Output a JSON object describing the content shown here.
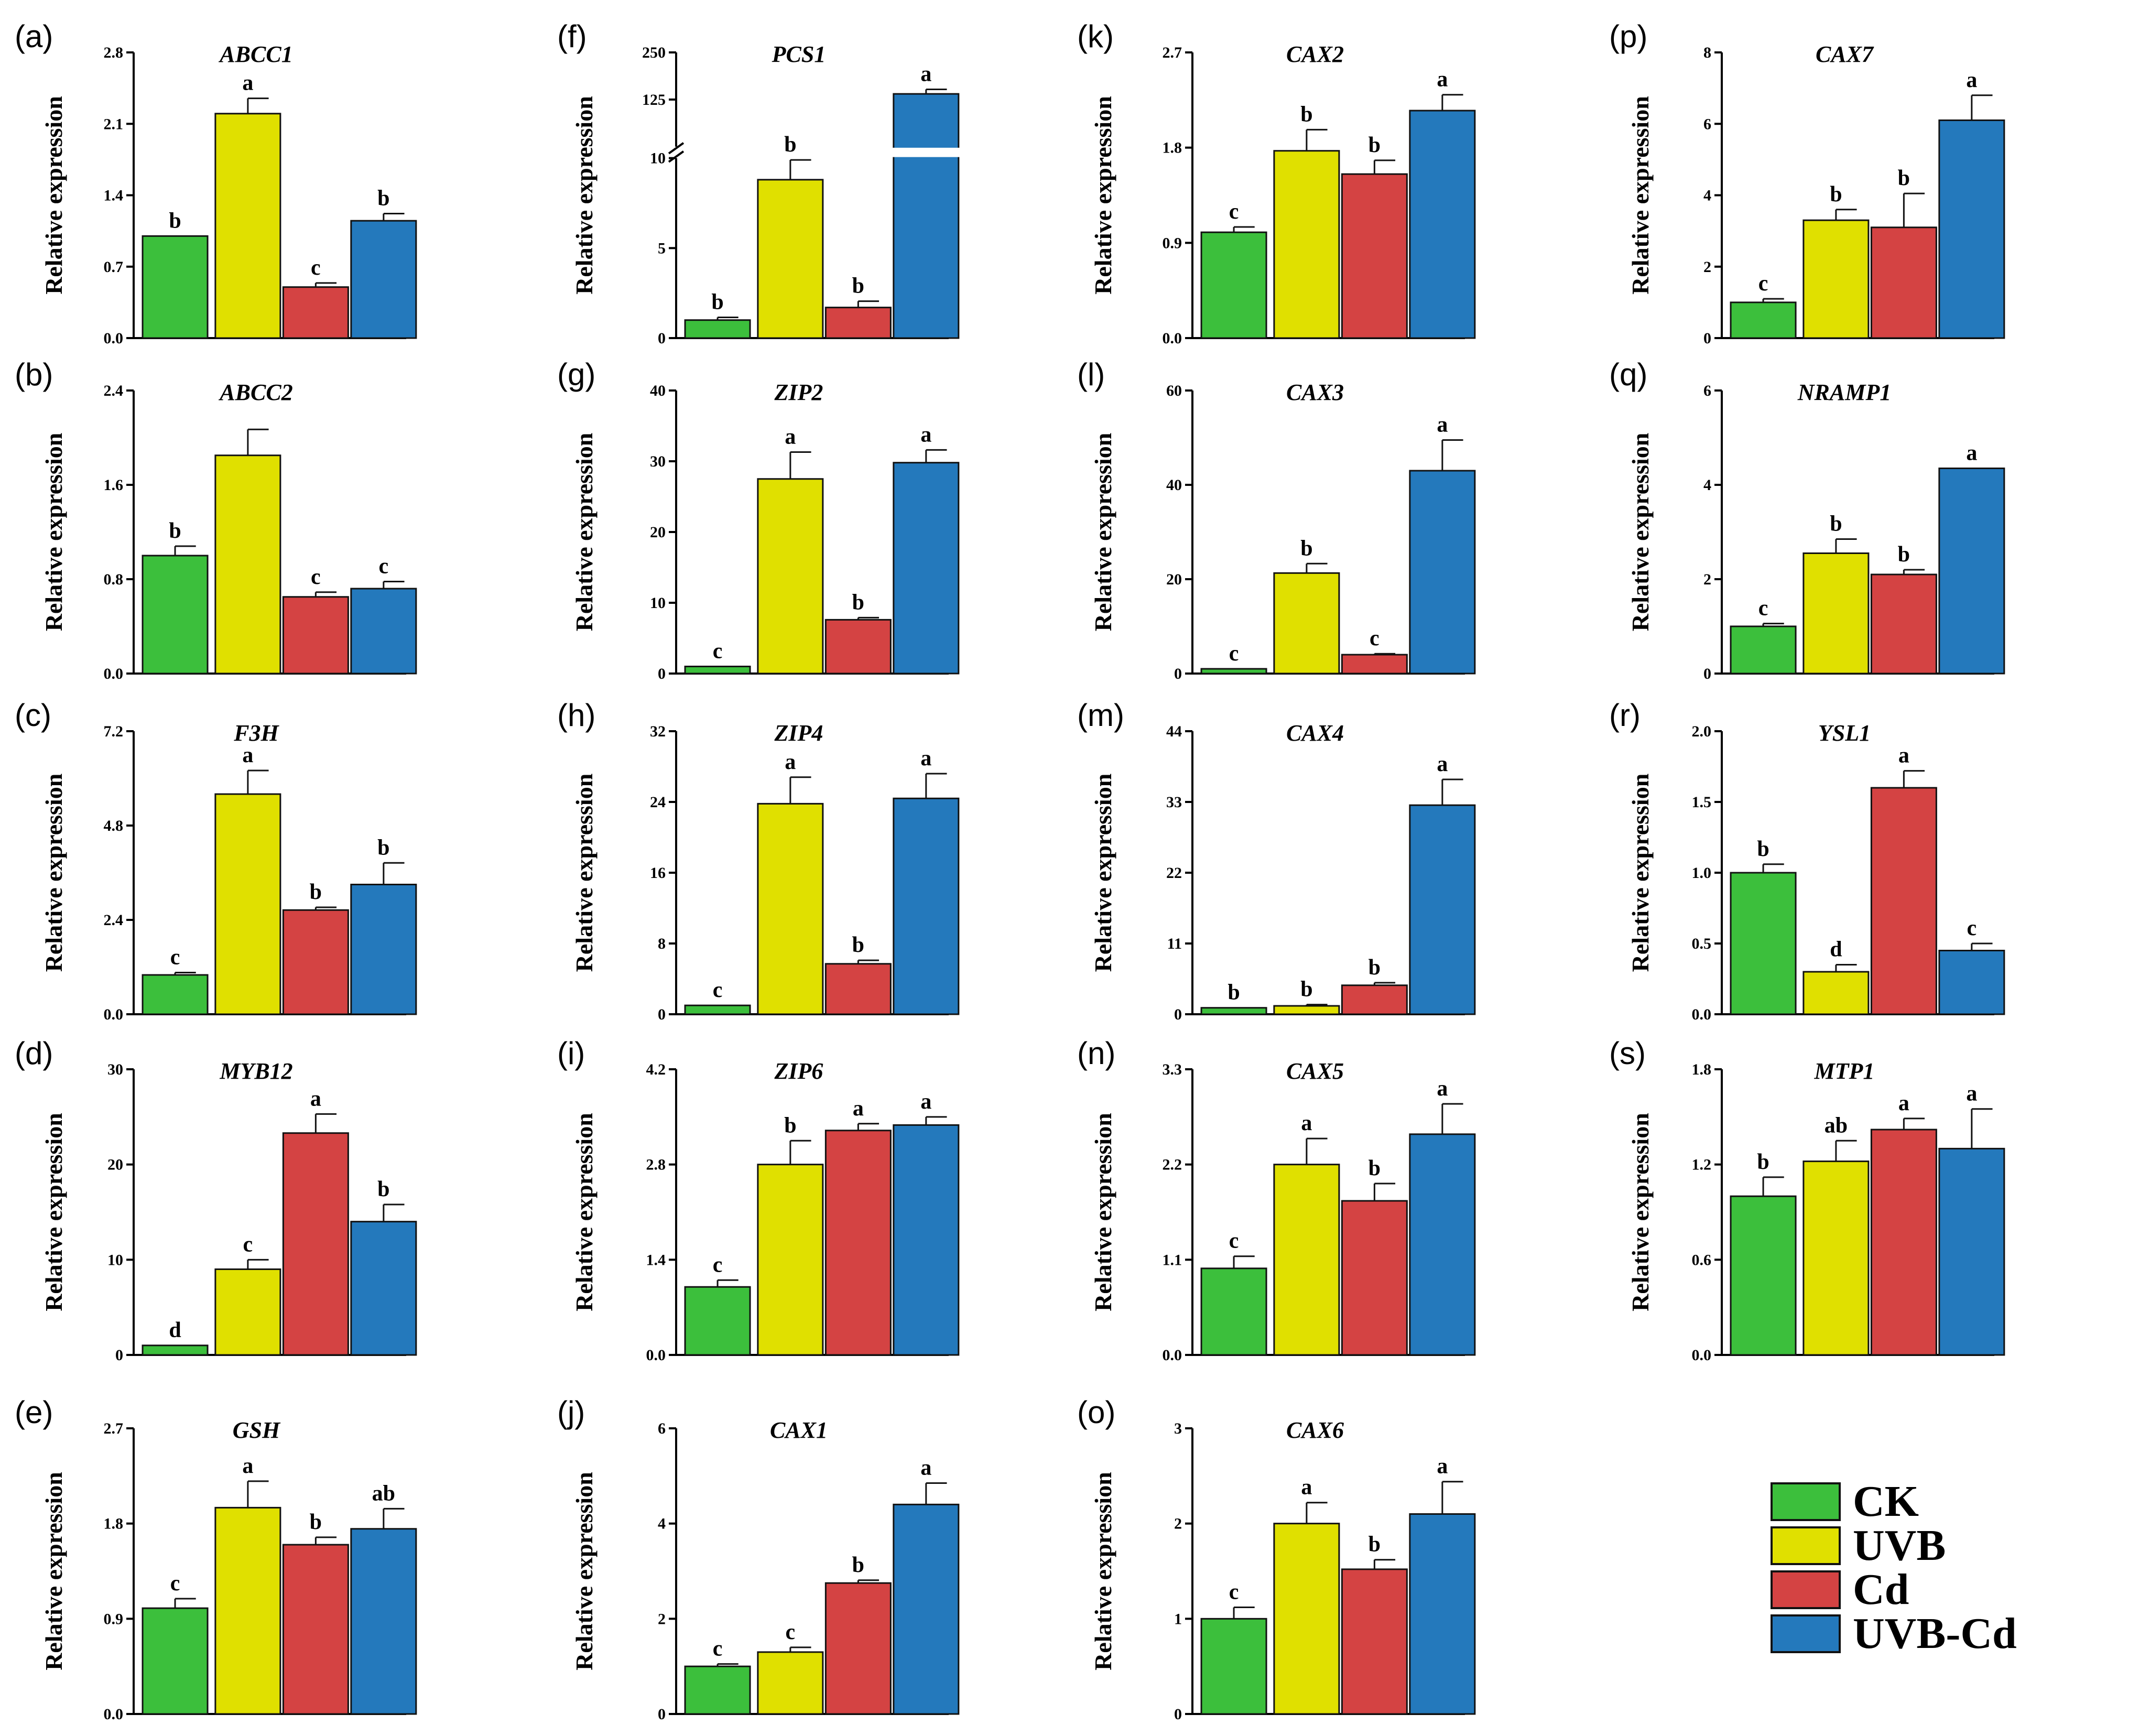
{
  "y_axis_label": "Relative expression",
  "legend": {
    "items": [
      {
        "label": "CK",
        "color": "#3cbf3c"
      },
      {
        "label": "UVB",
        "color": "#e0e000"
      },
      {
        "label": "Cd",
        "color": "#d44343"
      },
      {
        "label": "UVB-Cd",
        "color": "#2479bc"
      }
    ]
  },
  "chart_data": [
    {
      "panel": "(a)",
      "type": "bar",
      "title": "ABCC1",
      "categories": [
        "CK",
        "UVB",
        "Cd",
        "UVB-Cd"
      ],
      "values": [
        1.0,
        2.2,
        0.5,
        1.15
      ],
      "errors": [
        0.0,
        0.15,
        0.04,
        0.07
      ],
      "letters": [
        "b",
        "a",
        "c",
        "b"
      ],
      "ylim": [
        0,
        2.8
      ],
      "yticks": [
        "0.0",
        "0.7",
        "1.4",
        "2.1",
        "2.8"
      ],
      "ylabel": "Relative expression"
    },
    {
      "panel": "(b)",
      "type": "bar",
      "title": "ABCC2",
      "categories": [
        "CK",
        "UVB",
        "Cd",
        "UVB-Cd"
      ],
      "values": [
        1.0,
        1.85,
        0.65,
        0.72
      ],
      "errors": [
        0.08,
        0.22,
        0.04,
        0.06
      ],
      "letters": [
        "b",
        "",
        "c",
        "c"
      ],
      "ylim": [
        0,
        2.4
      ],
      "yticks": [
        "0.0",
        "0.8",
        "1.6",
        "2.4"
      ],
      "ylabel": "Relative expression"
    },
    {
      "panel": "(c)",
      "type": "bar",
      "title": "F3H",
      "categories": [
        "CK",
        "UVB",
        "Cd",
        "UVB-Cd"
      ],
      "values": [
        1.0,
        5.6,
        2.65,
        3.3
      ],
      "errors": [
        0.06,
        0.6,
        0.07,
        0.55
      ],
      "letters": [
        "c",
        "a",
        "b",
        "b"
      ],
      "ylim": [
        0,
        7.2
      ],
      "yticks": [
        "0.0",
        "2.4",
        "4.8",
        "7.2"
      ],
      "ylabel": "Relative expression"
    },
    {
      "panel": "(d)",
      "type": "bar",
      "title": "MYB12",
      "categories": [
        "CK",
        "UVB",
        "Cd",
        "UVB-Cd"
      ],
      "values": [
        1.0,
        9.0,
        23.3,
        14.0
      ],
      "errors": [
        0.0,
        1.0,
        2.0,
        1.8
      ],
      "letters": [
        "d",
        "c",
        "a",
        "b"
      ],
      "ylim": [
        0,
        30
      ],
      "yticks": [
        "0",
        "10",
        "20",
        "30"
      ],
      "ylabel": "Relative expression"
    },
    {
      "panel": "(e)",
      "type": "bar",
      "title": "GSH",
      "categories": [
        "CK",
        "UVB",
        "Cd",
        "UVB-Cd"
      ],
      "values": [
        1.0,
        1.95,
        1.6,
        1.75
      ],
      "errors": [
        0.09,
        0.25,
        0.07,
        0.19
      ],
      "letters": [
        "c",
        "a",
        "b",
        "ab"
      ],
      "ylim": [
        0,
        2.7
      ],
      "yticks": [
        "0.0",
        "0.9",
        "1.8",
        "2.7"
      ],
      "ylabel": "Relative expression"
    },
    {
      "panel": "(f)",
      "type": "bar",
      "title": "PCS1",
      "categories": [
        "CK",
        "UVB",
        "Cd",
        "UVB-Cd"
      ],
      "values": [
        1.0,
        8.8,
        1.7,
        140
      ],
      "errors": [
        0.15,
        1.1,
        0.35,
        12
      ],
      "letters": [
        "b",
        "b",
        "b",
        "a"
      ],
      "axis_break": [
        10,
        10
      ],
      "ylim": [
        0,
        250
      ],
      "yticks": [
        "0",
        "5",
        "10",
        "125",
        "250"
      ],
      "ylabel": "Relative expression"
    },
    {
      "panel": "(g)",
      "type": "bar",
      "title": "ZIP2",
      "categories": [
        "CK",
        "UVB",
        "Cd",
        "UVB-Cd"
      ],
      "values": [
        1.0,
        27.5,
        7.6,
        29.8
      ],
      "errors": [
        0.0,
        3.8,
        0.3,
        1.8
      ],
      "letters": [
        "c",
        "a",
        "b",
        "a"
      ],
      "ylim": [
        0,
        40
      ],
      "yticks": [
        "0",
        "10",
        "20",
        "30",
        "40"
      ],
      "ylabel": "Relative expression"
    },
    {
      "panel": "(h)",
      "type": "bar",
      "title": "ZIP4",
      "categories": [
        "CK",
        "UVB",
        "Cd",
        "UVB-Cd"
      ],
      "values": [
        1.0,
        23.8,
        5.7,
        24.4
      ],
      "errors": [
        0.0,
        3.0,
        0.4,
        2.8
      ],
      "letters": [
        "c",
        "a",
        "b",
        "a"
      ],
      "ylim": [
        0,
        32
      ],
      "yticks": [
        "0",
        "8",
        "16",
        "24",
        "32"
      ],
      "ylabel": "Relative expression"
    },
    {
      "panel": "(i)",
      "type": "bar",
      "title": "ZIP6",
      "categories": [
        "CK",
        "UVB",
        "Cd",
        "UVB-Cd"
      ],
      "values": [
        1.0,
        2.8,
        3.3,
        3.38
      ],
      "errors": [
        0.1,
        0.35,
        0.1,
        0.12
      ],
      "letters": [
        "c",
        "b",
        "a",
        "a"
      ],
      "ylim": [
        0,
        4.2
      ],
      "yticks": [
        "0.0",
        "1.4",
        "2.8",
        "4.2"
      ],
      "ylabel": "Relative expression"
    },
    {
      "panel": "(j)",
      "type": "bar",
      "title": "CAX1",
      "categories": [
        "CK",
        "UVB",
        "Cd",
        "UVB-Cd"
      ],
      "values": [
        1.0,
        1.3,
        2.75,
        4.4
      ],
      "errors": [
        0.05,
        0.1,
        0.06,
        0.45
      ],
      "letters": [
        "c",
        "c",
        "b",
        "a"
      ],
      "ylim": [
        0,
        6
      ],
      "yticks": [
        "0",
        "2",
        "4",
        "6"
      ],
      "ylabel": "Relative expression"
    },
    {
      "panel": "(k)",
      "type": "bar",
      "title": "CAX2",
      "categories": [
        "CK",
        "UVB",
        "Cd",
        "UVB-Cd"
      ],
      "values": [
        1.0,
        1.77,
        1.55,
        2.15
      ],
      "errors": [
        0.05,
        0.2,
        0.13,
        0.15
      ],
      "letters": [
        "c",
        "b",
        "b",
        "a"
      ],
      "ylim": [
        0,
        2.7
      ],
      "yticks": [
        "0.0",
        "0.9",
        "1.8",
        "2.7"
      ],
      "ylabel": "Relative expression"
    },
    {
      "panel": "(l)",
      "type": "bar",
      "title": "CAX3",
      "categories": [
        "CK",
        "UVB",
        "Cd",
        "UVB-Cd"
      ],
      "values": [
        1.0,
        21.3,
        4.0,
        43.0
      ],
      "errors": [
        0.0,
        2.0,
        0.2,
        6.5
      ],
      "letters": [
        "c",
        "b",
        "c",
        "a"
      ],
      "ylim": [
        0,
        60
      ],
      "yticks": [
        "0",
        "20",
        "40",
        "60"
      ],
      "ylabel": "Relative expression"
    },
    {
      "panel": "(m)",
      "type": "bar",
      "title": "CAX4",
      "categories": [
        "CK",
        "UVB",
        "Cd",
        "UVB-Cd"
      ],
      "values": [
        1.0,
        1.3,
        4.5,
        32.5
      ],
      "errors": [
        0.0,
        0.2,
        0.4,
        4.0
      ],
      "letters": [
        "b",
        "b",
        "b",
        "a"
      ],
      "ylim": [
        0,
        44
      ],
      "yticks": [
        "0",
        "11",
        "22",
        "33",
        "44"
      ],
      "ylabel": "Relative expression"
    },
    {
      "panel": "(n)",
      "type": "bar",
      "title": "CAX5",
      "categories": [
        "CK",
        "UVB",
        "Cd",
        "UVB-Cd"
      ],
      "values": [
        1.0,
        2.2,
        1.78,
        2.55
      ],
      "errors": [
        0.14,
        0.3,
        0.2,
        0.35
      ],
      "letters": [
        "c",
        "a",
        "b",
        "a"
      ],
      "ylim": [
        0,
        3.3
      ],
      "yticks": [
        "0.0",
        "1.1",
        "2.2",
        "3.3"
      ],
      "ylabel": "Relative expression"
    },
    {
      "panel": "(o)",
      "type": "bar",
      "title": "CAX6",
      "categories": [
        "CK",
        "UVB",
        "Cd",
        "UVB-Cd"
      ],
      "values": [
        1.0,
        2.0,
        1.52,
        2.1
      ],
      "errors": [
        0.12,
        0.22,
        0.1,
        0.34
      ],
      "letters": [
        "c",
        "a",
        "b",
        "a"
      ],
      "ylim": [
        0,
        3
      ],
      "yticks": [
        "0",
        "1",
        "2",
        "3"
      ],
      "ylabel": "Relative expression"
    },
    {
      "panel": "(p)",
      "type": "bar",
      "title": "CAX7",
      "categories": [
        "CK",
        "UVB",
        "Cd",
        "UVB-Cd"
      ],
      "values": [
        1.0,
        3.3,
        3.1,
        6.1
      ],
      "errors": [
        0.1,
        0.3,
        0.95,
        0.7
      ],
      "letters": [
        "c",
        "b",
        "b",
        "a"
      ],
      "ylim": [
        0,
        8
      ],
      "yticks": [
        "0",
        "2",
        "4",
        "6",
        "8"
      ],
      "ylabel": "Relative expression"
    },
    {
      "panel": "(q)",
      "type": "bar",
      "title": "NRAMP1",
      "categories": [
        "CK",
        "UVB",
        "Cd",
        "UVB-Cd"
      ],
      "values": [
        1.0,
        2.55,
        2.1,
        4.35
      ],
      "errors": [
        0.06,
        0.3,
        0.1,
        0.0
      ],
      "letters": [
        "c",
        "b",
        "b",
        "a"
      ],
      "ylim": [
        0,
        6
      ],
      "yticks": [
        "0",
        "2",
        "4",
        "6"
      ],
      "ylabel": "Relative expression"
    },
    {
      "panel": "(r)",
      "type": "bar",
      "title": "YSL1",
      "categories": [
        "CK",
        "UVB",
        "Cd",
        "UVB-Cd"
      ],
      "values": [
        1.0,
        0.3,
        1.6,
        0.45
      ],
      "errors": [
        0.06,
        0.05,
        0.12,
        0.05
      ],
      "letters": [
        "b",
        "d",
        "a",
        "c"
      ],
      "ylim": [
        0,
        2.0
      ],
      "yticks": [
        "0.0",
        "0.5",
        "1.0",
        "1.5",
        "2.0"
      ],
      "ylabel": "Relative expression"
    },
    {
      "panel": "(s)",
      "type": "bar",
      "title": "MTP1",
      "categories": [
        "CK",
        "UVB",
        "Cd",
        "UVB-Cd"
      ],
      "values": [
        1.0,
        1.22,
        1.42,
        1.3
      ],
      "errors": [
        0.12,
        0.13,
        0.07,
        0.25
      ],
      "letters": [
        "b",
        "ab",
        "a",
        "a"
      ],
      "ylim": [
        0,
        1.8
      ],
      "yticks": [
        "0.0",
        "0.6",
        "1.2",
        "1.8"
      ],
      "ylabel": "Relative expression"
    }
  ]
}
